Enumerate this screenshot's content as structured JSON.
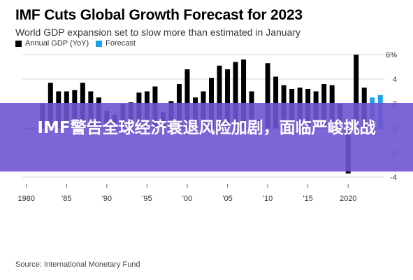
{
  "header": {
    "title": "IMF Cuts Global Growth Forecast for 2023",
    "subtitle": "World GDP expansion set to slow more than estimated in January"
  },
  "legend": [
    {
      "label": "Annual GDP (YoY)",
      "color": "#000000"
    },
    {
      "label": "Forecast",
      "color": "#1ea1e6"
    }
  ],
  "banner": {
    "text": "IMF警告全球经济衰退风险加剧，面临严峻挑战"
  },
  "source": "Source: International Monetary Fund",
  "chart_data": {
    "type": "bar",
    "title": "IMF Cuts Global Growth Forecast for 2023",
    "subtitle": "World GDP expansion set to slow more than estimated in January",
    "ylim": [
      -4,
      6
    ],
    "yticks": [
      -4,
      -2,
      0,
      2,
      4,
      6
    ],
    "ytick_labels": [
      "-4",
      "-2",
      "0",
      "2",
      "4",
      "6%"
    ],
    "xticks": [
      1980,
      1985,
      1990,
      1995,
      2000,
      2005,
      2010,
      2015,
      2020
    ],
    "xtick_labels": [
      "1980",
      "'85",
      "'90",
      "'95",
      "'00",
      "'05",
      "'10",
      "'15",
      "2020"
    ],
    "grid": true,
    "legend_position": "top-left",
    "series": [
      {
        "name": "Annual GDP (YoY)",
        "color": "#000000",
        "x": [
          1982,
          1983,
          1984,
          1985,
          1986,
          1987,
          1988,
          1989,
          1990,
          1991,
          1992,
          1993,
          1994,
          1995,
          1996,
          1997,
          1998,
          1999,
          2000,
          2001,
          2002,
          2003,
          2004,
          2005,
          2006,
          2007,
          2008,
          2009,
          2010,
          2011,
          2012,
          2013,
          2014,
          2015,
          2016,
          2017,
          2018,
          2019,
          2020,
          2021,
          2022
        ],
        "values": [
          2.0,
          3.7,
          3.0,
          3.0,
          3.1,
          3.7,
          3.0,
          2.5,
          1.4,
          1.1,
          2.0,
          2.1,
          2.9,
          3.0,
          3.4,
          1.3,
          2.2,
          3.6,
          4.8,
          2.5,
          3.0,
          4.1,
          5.1,
          4.8,
          5.4,
          5.6,
          3.0,
          0.7,
          5.3,
          4.2,
          3.5,
          3.2,
          3.3,
          3.2,
          3.0,
          3.6,
          3.5,
          2.0,
          -3.7,
          6.0,
          3.3
        ],
        "x_range": [
          1979.5,
          2024.5
        ]
      },
      {
        "name": "Forecast",
        "color": "#1ea1e6",
        "x": [
          2023,
          2024
        ],
        "values": [
          2.5,
          2.7
        ]
      }
    ]
  }
}
